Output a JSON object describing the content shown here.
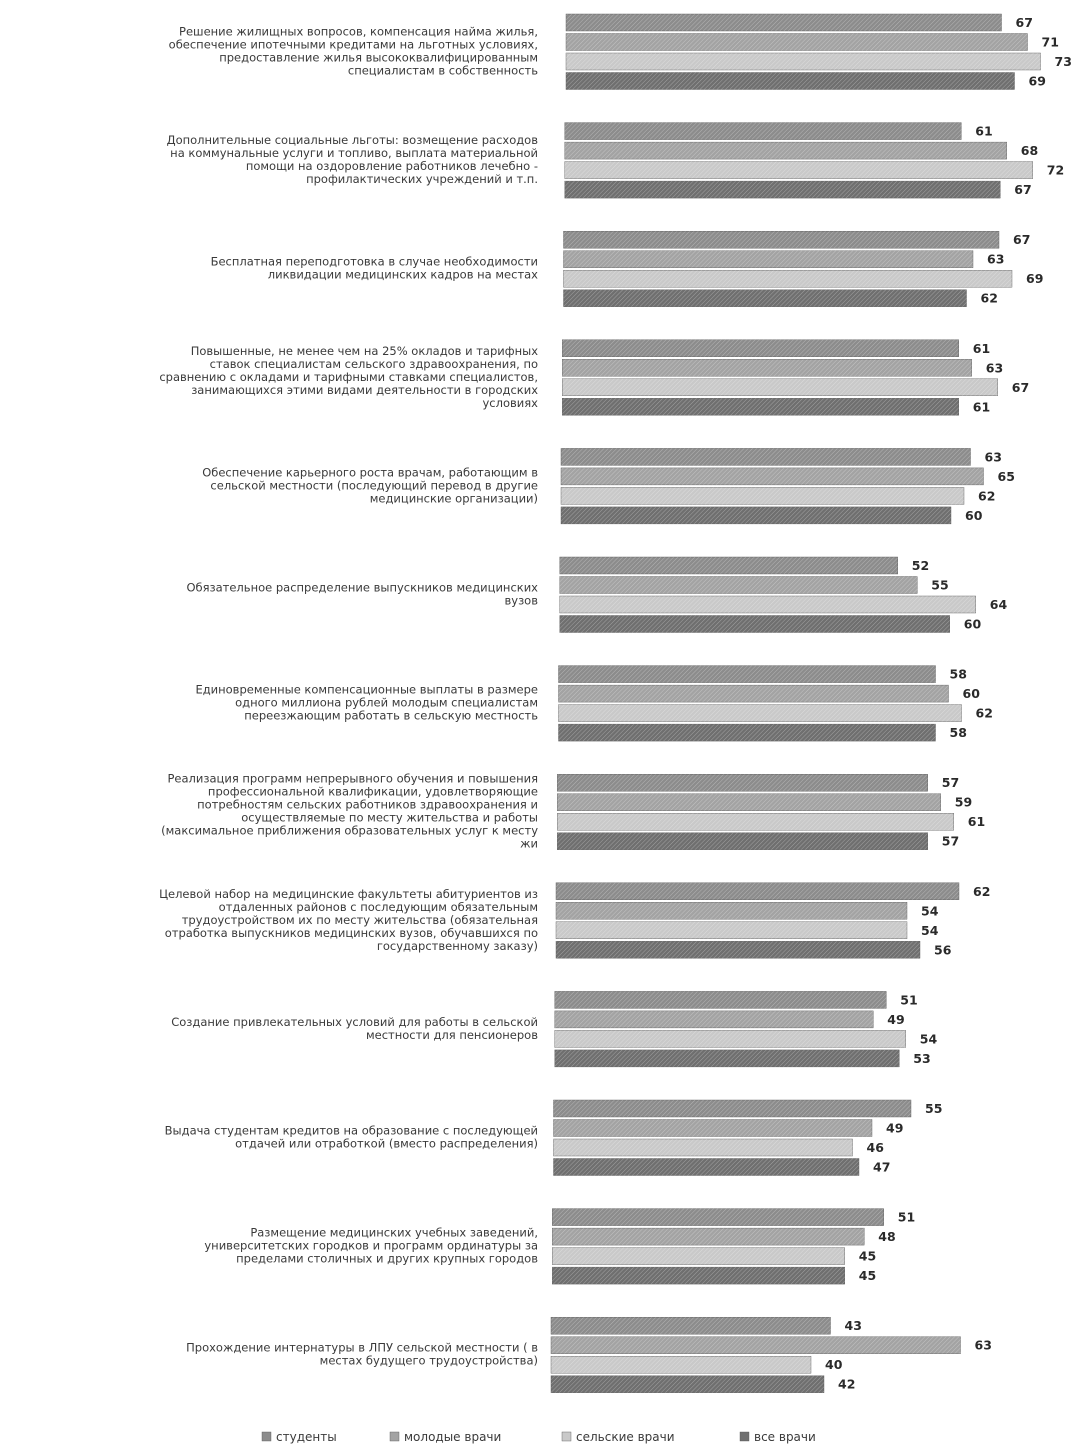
{
  "chart_data": {
    "type": "bar",
    "orientation": "horizontal",
    "grid": false,
    "legend_position": "bottom",
    "categories": [
      "Решение жилищных вопросов, компенсация найма жилья, обеспечение ипотечными кредитами на льготных условиях, предоставление жилья высококвалифицированным специалистам в собственность",
      "Дополнительные социальные льготы: возмещение расходов на коммунальные услуги и топливо, выплата материальной помощи на оздоровление работников лечебно - профилактических учреждений и т.п.",
      "Бесплатная переподготовка в случае необходимости ликвидации медицинских кадров на местах",
      "Повышенные, не менее чем на 25% окладов и тарифных ставок специалистам сельского здравоохранения, по сравнению с окладами и тарифными ставками специалистов, занимающихся этими видами деятельности в городских условиях",
      "Обеспечение карьерного роста врачам, работающим в сельской местности (последующий перевод в другие медицинские организации)",
      "Обязательное распределение выпускников медицинских вузов",
      "Единовременные компенсационные выплаты в размере одного миллиона рублей молодым специалистам переезжающим работать в сельскую местность",
      "Реализация программ непрерывного обучения и повышения профессиональной квалификации, удовлетворяющие потребностям сельских работников здравоохранения и осуществляемые по месту жительства и работы (максимальное приближения образовательных услуг к месту жи",
      "Целевой набор на медицинские факультеты абитуриентов из отдаленных районов с последующим обязательным трудоустройством их по месту жительства (обязательная отработка выпускников медицинских вузов, обучавшихся по государственному заказу)",
      "Создание привлекательных условий для работы в сельской местности для пенсионеров",
      "Выдача студентам кредитов на образование с последующей отдачей или отработкой (вместо распределения)",
      "Размещение медицинских учебных заведений, университетских городков и программ ординатуры за пределами столичных и других крупных городов",
      "Прохождение интернатуры в ЛПУ сельской местности ( в местах будущего трудоустройства)"
    ],
    "category_lines": [
      [
        "Решение жилищных вопросов, компенсация найма жилья,",
        "обеспечение ипотечными кредитами на льготных условиях,",
        "предоставление жилья высококвалифицированным",
        "специалистам в собственность"
      ],
      [
        "Дополнительные социальные льготы: возмещение расходов",
        "на коммунальные услуги и топливо, выплата материальной",
        "помощи на оздоровление работников лечебно -",
        "профилактических учреждений и т.п."
      ],
      [
        "Бесплатная переподготовка в случае необходимости",
        "ликвидации медицинских кадров на местах"
      ],
      [
        "Повышенные, не менее чем на 25% окладов и тарифных",
        "ставок специалистам сельского здравоохранения, по",
        "сравнению с окладами и тарифными ставками специалистов,",
        "занимающихся этими видами деятельности в городских",
        "условиях"
      ],
      [
        "Обеспечение карьерного роста врачам, работающим в",
        "сельской местности (последующий перевод в другие",
        "медицинские организации)"
      ],
      [
        "Обязательное распределение выпускников медицинских",
        "вузов"
      ],
      [
        "Единовременные компенсационные выплаты в размере",
        "одного миллиона рублей молодым специалистам",
        "переезжающим работать в сельскую местность"
      ],
      [
        "Реализация программ непрерывного обучения и повышения",
        "профессиональной квалификации, удовлетворяющие",
        "потребностям сельских работников здравоохранения и",
        "осуществляемые по месту жительства и работы",
        "(максимальное приближения образовательных услуг к месту",
        "жи"
      ],
      [
        "Целевой набор на медицинские факультеты абитуриентов из",
        "отдаленных районов с последующим обязательным",
        "трудоустройством их по месту жительства (обязательная",
        "отработка выпускников медицинских вузов, обучавшихся по",
        "государственному заказу)"
      ],
      [
        "Создание привлекательных условий для работы в сельской",
        "местности для пенсионеров"
      ],
      [
        "Выдача студентам кредитов на образование с последующей",
        "отдачей или отработкой (вместо распределения)"
      ],
      [
        "Размещение медицинских учебных заведений,",
        "университетских городков и программ ординатуры за",
        "пределами столичных и других крупных городов"
      ],
      [
        "Прохождение интернатуры в ЛПУ сельской местности ( в",
        "местах будущего трудоустройства)"
      ]
    ],
    "series": [
      {
        "name": "студенты",
        "color": "#8c8c8c",
        "values": [
          67,
          61,
          67,
          61,
          63,
          52,
          58,
          57,
          62,
          51,
          55,
          51,
          43
        ]
      },
      {
        "name": "молодые врачи",
        "color": "#a3a3a3",
        "values": [
          71,
          68,
          63,
          63,
          65,
          55,
          60,
          59,
          54,
          49,
          49,
          48,
          63
        ]
      },
      {
        "name": "сельские врачи",
        "color": "#c9c9c9",
        "values": [
          73,
          72,
          69,
          67,
          62,
          64,
          62,
          61,
          54,
          54,
          46,
          45,
          40
        ]
      },
      {
        "name": "все врачи",
        "color": "#6f6f6f",
        "values": [
          69,
          67,
          62,
          61,
          60,
          60,
          58,
          57,
          56,
          53,
          47,
          45,
          42
        ]
      }
    ]
  }
}
